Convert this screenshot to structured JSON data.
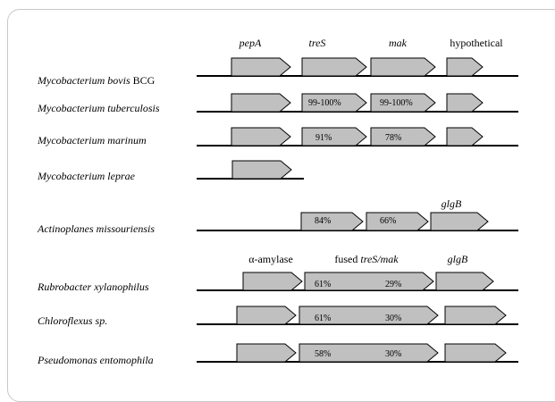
{
  "header_row_1": {
    "pepA": "pepA",
    "treS": "treS",
    "mak": "mak",
    "hypothetical": "hypothetical"
  },
  "header_row_2": {
    "glgB": "glgB"
  },
  "header_row_3": {
    "alpha_amylase": "α-amylase",
    "fused_prefix": "fused ",
    "fused_genes": "treS/mak",
    "glgB": "glgB"
  },
  "organisms": [
    {
      "name": "Mycobacterium bovis",
      "suffix": " BCG",
      "pcts": [
        "",
        ""
      ]
    },
    {
      "name": "Mycobacterium tuberculosis",
      "suffix": "",
      "pcts": [
        "99-100%",
        "99-100%"
      ]
    },
    {
      "name": "Mycobacterium marinum",
      "suffix": "",
      "pcts": [
        "91%",
        "78%"
      ]
    },
    {
      "name": "Mycobacterium leprae",
      "suffix": "",
      "pcts": []
    },
    {
      "name": "Actinoplanes missouriensis",
      "suffix": "",
      "pcts": [
        "84%",
        "66%"
      ]
    },
    {
      "name": "Rubrobacter xylanophilus",
      "suffix": "",
      "pcts": [
        "61%",
        "29%"
      ]
    },
    {
      "name": "Chloroflexus sp.",
      "suffix": "",
      "pcts": [
        "61%",
        "30%"
      ]
    },
    {
      "name": "Pseudomonas entomophila",
      "suffix": "",
      "pcts": [
        "58%",
        "30%"
      ]
    }
  ],
  "colors": {
    "gene_fill": "#c0c0c0",
    "gene_stroke": "#000000",
    "frame_border": "#c8c8c8"
  }
}
